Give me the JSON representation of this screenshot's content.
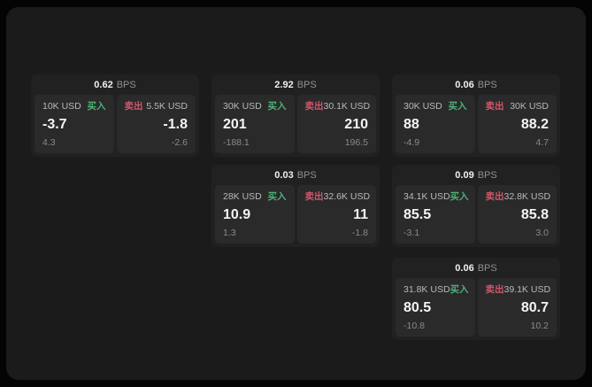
{
  "labels": {
    "bps_suffix": "BPS",
    "buy": "买入",
    "sell": "卖出"
  },
  "colors": {
    "background": "#040404",
    "panel": "#1b1b1c",
    "card": "#212122",
    "tile": "#2a2a2b",
    "buy_green": "#4fb078",
    "sell_red": "#cf5868"
  },
  "cards": [
    {
      "bps": "0.62",
      "buy": {
        "amount": "10K USD",
        "value": "-3.7",
        "delta": "4.3"
      },
      "sell": {
        "amount": "5.5K USD",
        "value": "-1.8",
        "delta": "-2.6"
      }
    },
    {
      "bps": "2.92",
      "buy": {
        "amount": "30K USD",
        "value": "201",
        "delta": "-188.1"
      },
      "sell": {
        "amount": "30.1K USD",
        "value": "210",
        "delta": "196.5"
      }
    },
    {
      "bps": "0.06",
      "buy": {
        "amount": "30K USD",
        "value": "88",
        "delta": "-4.9"
      },
      "sell": {
        "amount": "30K USD",
        "value": "88.2",
        "delta": "4.7"
      }
    },
    {
      "bps": "0.03",
      "buy": {
        "amount": "28K USD",
        "value": "10.9",
        "delta": "1.3"
      },
      "sell": {
        "amount": "32.6K USD",
        "value": "11",
        "delta": "-1.8"
      }
    },
    {
      "bps": "0.09",
      "buy": {
        "amount": "34.1K USD",
        "value": "85.5",
        "delta": "-3.1"
      },
      "sell": {
        "amount": "32.8K USD",
        "value": "85.8",
        "delta": "3.0"
      }
    },
    {
      "bps": "0.06",
      "buy": {
        "amount": "31.8K USD",
        "value": "80.5",
        "delta": "-10.8"
      },
      "sell": {
        "amount": "39.1K USD",
        "value": "80.7",
        "delta": "10.2"
      }
    }
  ]
}
